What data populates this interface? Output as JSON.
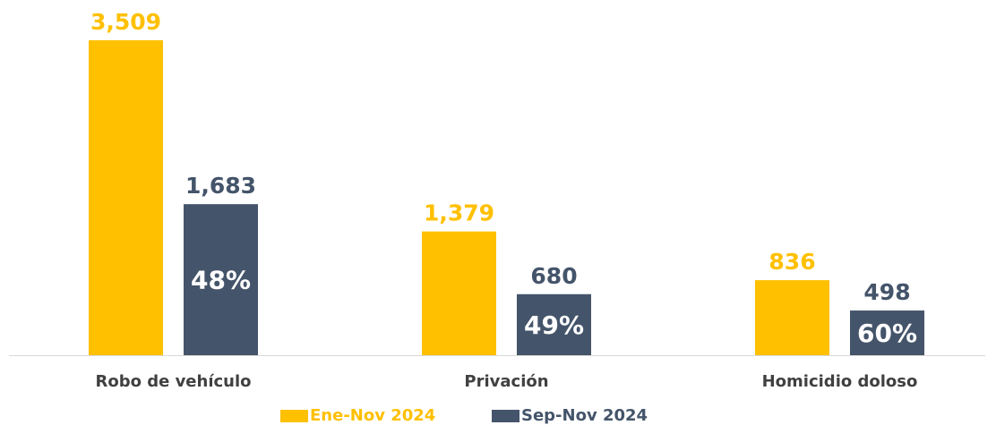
{
  "chart_data": {
    "type": "bar",
    "categories": [
      "Robo de vehículo",
      "Privación",
      "Homicidio doloso"
    ],
    "series": [
      {
        "name": "Ene-Nov 2024",
        "color": "#FFC000",
        "values": [
          3509,
          1379,
          836
        ],
        "value_labels": [
          "3,509",
          "1,379",
          "836"
        ]
      },
      {
        "name": "Sep-Nov 2024",
        "color": "#44546A",
        "values": [
          1683,
          680,
          498
        ],
        "value_labels": [
          "1,683",
          "680",
          "498"
        ],
        "annotations": [
          {
            "value": 48,
            "label": "48%"
          },
          {
            "value": 49,
            "label": "49%"
          },
          {
            "value": 60,
            "label": "60%"
          }
        ]
      }
    ]
  }
}
